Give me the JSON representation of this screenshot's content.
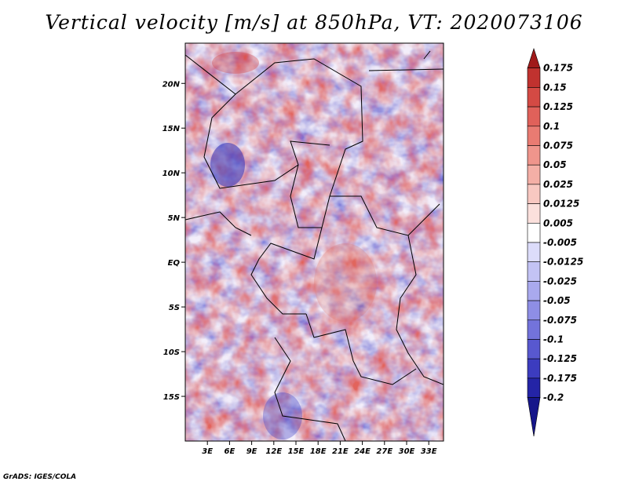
{
  "title": "Vertical velocity [m/s] at 850hPa, VT: 2020073106",
  "credit": "GrADS: IGES/COLA",
  "map": {
    "lat_ticks": [
      "20N",
      "15N",
      "10N",
      "5N",
      "EQ",
      "5S",
      "10S",
      "15S"
    ],
    "lat_values": [
      20,
      15,
      10,
      5,
      0,
      -5,
      -10,
      -15
    ],
    "lon_ticks": [
      "3E",
      "6E",
      "9E",
      "12E",
      "15E",
      "18E",
      "21E",
      "24E",
      "27E",
      "30E",
      "33E"
    ],
    "lon_values": [
      3,
      6,
      9,
      12,
      15,
      18,
      21,
      24,
      27,
      30,
      33
    ],
    "lat_range": [
      -20,
      24.5
    ],
    "lon_range": [
      0,
      35
    ]
  },
  "colorbar": {
    "labels": [
      "0.175",
      "0.15",
      "0.125",
      "0.1",
      "0.075",
      "0.05",
      "0.025",
      "0.0125",
      "0.005",
      "-0.005",
      "-0.0125",
      "-0.025",
      "-0.05",
      "-0.075",
      "-0.1",
      "-0.125",
      "-0.175",
      "-0.2"
    ],
    "colors": [
      "#a01a1a",
      "#c0322f",
      "#d44a44",
      "#e0615a",
      "#e97b72",
      "#ef958c",
      "#f4afa6",
      "#f8c8c1",
      "#fbe0dc",
      "#ffffff",
      "#dcdcfa",
      "#c3c3f4",
      "#a9a9ee",
      "#8e8ee5",
      "#7373db",
      "#5858cf",
      "#3c3cbf",
      "#2424a6",
      "#16168a"
    ]
  }
}
